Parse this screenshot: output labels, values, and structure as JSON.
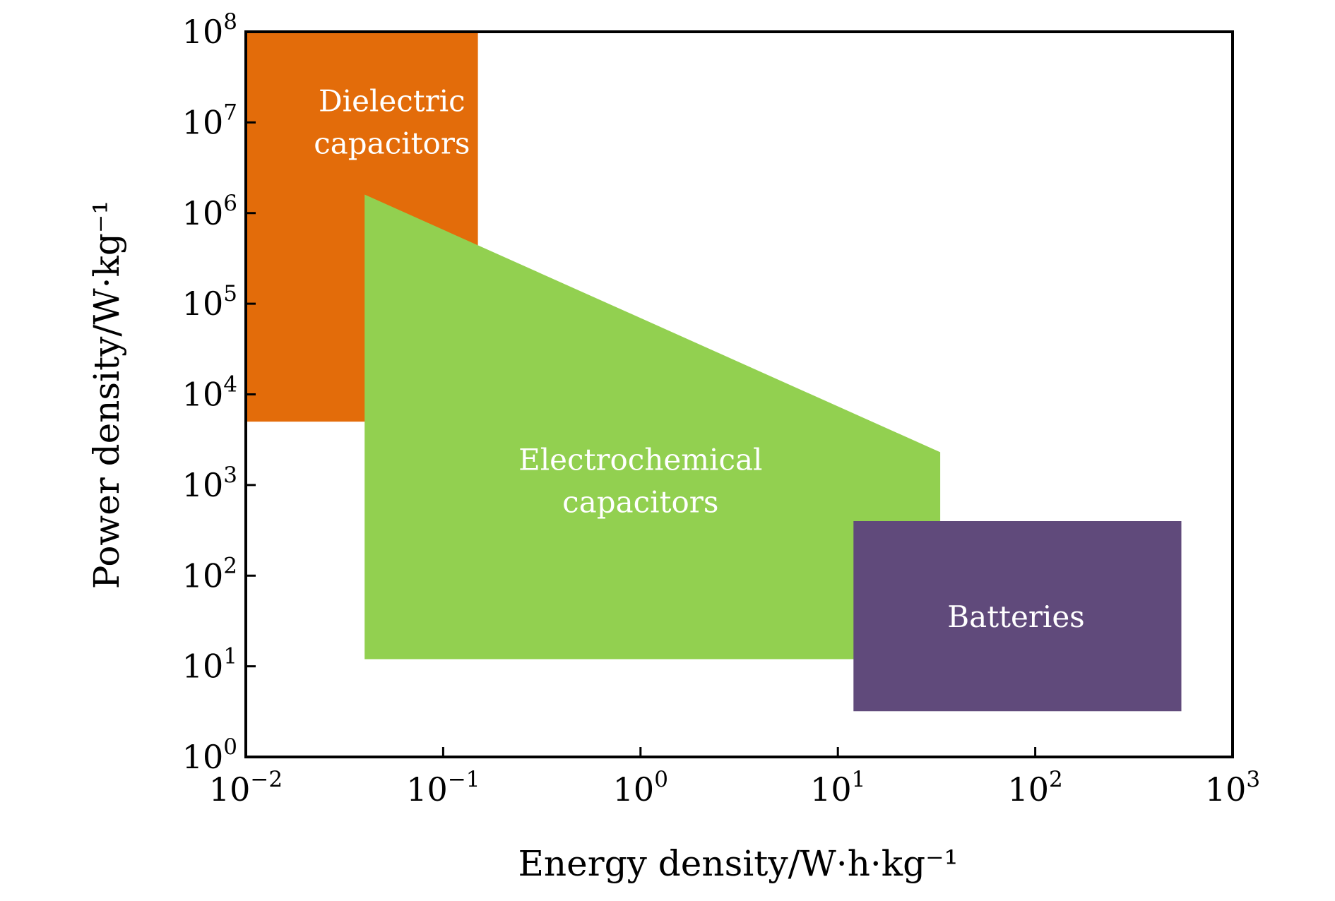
{
  "chart_data": {
    "type": "area",
    "xlabel": "Energy density/W·h·kg⁻¹",
    "ylabel": "Power density/W·kg⁻¹",
    "xscale": "log",
    "yscale": "log",
    "xlim": [
      0.01,
      1000
    ],
    "ylim": [
      1,
      100000000
    ],
    "grid": false,
    "x_ticks": [
      {
        "base": "10",
        "exp": "−2",
        "value": 0.01
      },
      {
        "base": "10",
        "exp": "−1",
        "value": 0.1
      },
      {
        "base": "10",
        "exp": "0",
        "value": 1
      },
      {
        "base": "10",
        "exp": "1",
        "value": 10
      },
      {
        "base": "10",
        "exp": "2",
        "value": 100
      },
      {
        "base": "10",
        "exp": "3",
        "value": 1000
      }
    ],
    "y_ticks": [
      {
        "base": "10",
        "exp": "0",
        "value": 1
      },
      {
        "base": "10",
        "exp": "1",
        "value": 10
      },
      {
        "base": "10",
        "exp": "2",
        "value": 100
      },
      {
        "base": "10",
        "exp": "3",
        "value": 1000
      },
      {
        "base": "10",
        "exp": "4",
        "value": 10000
      },
      {
        "base": "10",
        "exp": "5",
        "value": 100000
      },
      {
        "base": "10",
        "exp": "6",
        "value": 1000000
      },
      {
        "base": "10",
        "exp": "7",
        "value": 10000000
      },
      {
        "base": "10",
        "exp": "8",
        "value": 100000000
      }
    ],
    "regions": [
      {
        "name": "dielectric-capacitors",
        "label_lines": [
          "Dielectric",
          "capacitors"
        ],
        "color": "#E36C0A",
        "polygon": [
          [
            0.01,
            5000
          ],
          [
            0.01,
            100000000
          ],
          [
            0.15,
            100000000
          ],
          [
            0.15,
            5000
          ]
        ],
        "label_at": [
          0.055,
          10000000
        ]
      },
      {
        "name": "electrochemical-capacitors",
        "label_lines": [
          "Electrochemical",
          "capacitors"
        ],
        "color": "#92D050",
        "polygon": [
          [
            0.04,
            12
          ],
          [
            0.04,
            1600000
          ],
          [
            33,
            2300
          ],
          [
            33,
            12
          ]
        ],
        "label_at": [
          1.0,
          1100
        ]
      },
      {
        "name": "batteries",
        "label_lines": [
          "Batteries"
        ],
        "color": "#604A7B",
        "polygon": [
          [
            12,
            3.2
          ],
          [
            12,
            400
          ],
          [
            550,
            400
          ],
          [
            550,
            3.2
          ]
        ],
        "label_at": [
          80,
          35
        ]
      }
    ]
  }
}
